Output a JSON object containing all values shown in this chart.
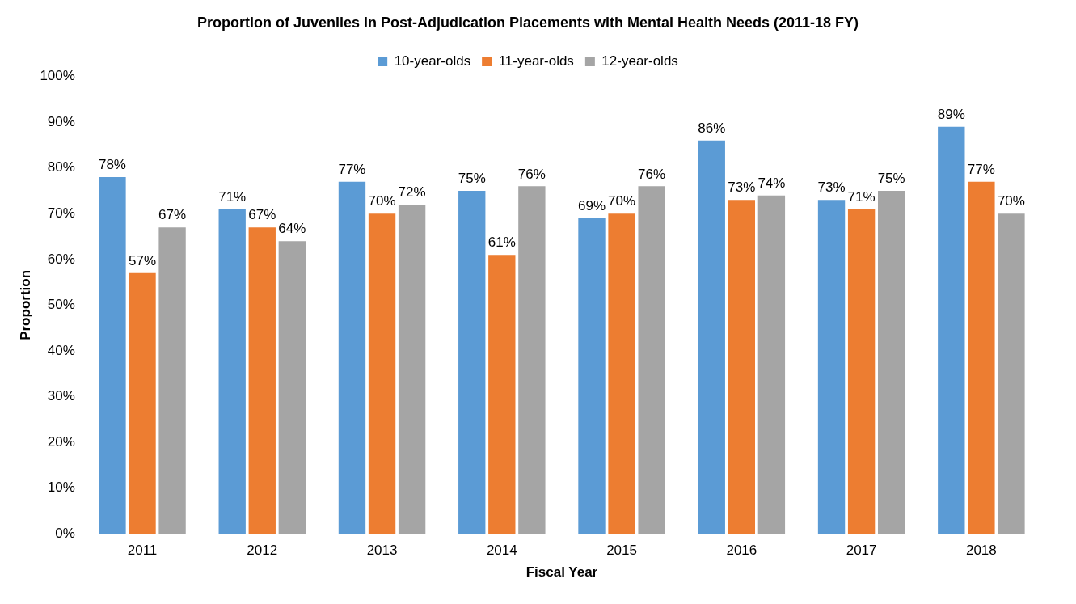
{
  "chart_data": {
    "type": "bar",
    "title": "Proportion of Juveniles in Post-Adjudication Placements with Mental Health Needs (2011-18 FY)",
    "xlabel": "Fiscal Year",
    "ylabel": "Proportion",
    "categories": [
      "2011",
      "2012",
      "2013",
      "2014",
      "2015",
      "2016",
      "2017",
      "2018"
    ],
    "series": [
      {
        "name": "10-year-olds",
        "color": "#5b9bd5",
        "values": [
          78,
          71,
          77,
          75,
          69,
          86,
          73,
          89
        ],
        "value_labels": [
          "78%",
          "71%",
          "77%",
          "75%",
          "69%",
          "86%",
          "73%",
          "89%"
        ]
      },
      {
        "name": "11-year-olds",
        "color": "#ed7d31",
        "values": [
          57,
          67,
          70,
          61,
          70,
          73,
          71,
          77
        ],
        "value_labels": [
          "57%",
          "67%",
          "70%",
          "61%",
          "70%",
          "73%",
          "71%",
          "77%"
        ]
      },
      {
        "name": "12-year-olds",
        "color": "#a5a5a5",
        "values": [
          67,
          64,
          72,
          76,
          76,
          74,
          75,
          70
        ],
        "value_labels": [
          "67%",
          "64%",
          "72%",
          "76%",
          "76%",
          "74%",
          "75%",
          "70%"
        ]
      }
    ],
    "ylim": [
      0,
      100
    ],
    "yticks": [
      {
        "value": 0,
        "label": "0%"
      },
      {
        "value": 10,
        "label": "10%"
      },
      {
        "value": 20,
        "label": "20%"
      },
      {
        "value": 30,
        "label": "30%"
      },
      {
        "value": 40,
        "label": "40%"
      },
      {
        "value": 50,
        "label": "50%"
      },
      {
        "value": 60,
        "label": "60%"
      },
      {
        "value": 70,
        "label": "70%"
      },
      {
        "value": 80,
        "label": "80%"
      },
      {
        "value": 90,
        "label": "90%"
      },
      {
        "value": 100,
        "label": "100%"
      }
    ],
    "grid": false,
    "legend": "top"
  }
}
